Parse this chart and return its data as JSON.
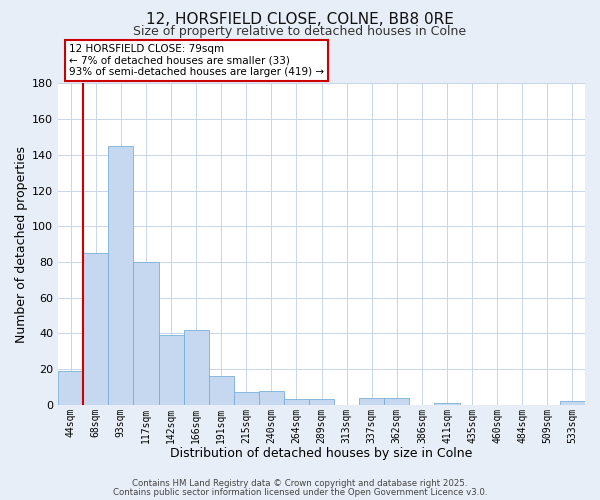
{
  "title": "12, HORSFIELD CLOSE, COLNE, BB8 0RE",
  "subtitle": "Size of property relative to detached houses in Colne",
  "xlabel": "Distribution of detached houses by size in Colne",
  "ylabel": "Number of detached properties",
  "bar_labels": [
    "44sqm",
    "68sqm",
    "93sqm",
    "117sqm",
    "142sqm",
    "166sqm",
    "191sqm",
    "215sqm",
    "240sqm",
    "264sqm",
    "289sqm",
    "313sqm",
    "337sqm",
    "362sqm",
    "386sqm",
    "411sqm",
    "435sqm",
    "460sqm",
    "484sqm",
    "509sqm",
    "533sqm"
  ],
  "bar_values": [
    19,
    85,
    145,
    80,
    39,
    42,
    16,
    7,
    8,
    3,
    3,
    0,
    4,
    4,
    0,
    1,
    0,
    0,
    0,
    0,
    2
  ],
  "bar_color": "#c5d8f0",
  "bar_edge_color": "#7ab0d8",
  "vline_color": "#cc0000",
  "vline_x_bar_index": 1,
  "ylim": [
    0,
    180
  ],
  "yticks": [
    0,
    20,
    40,
    60,
    80,
    100,
    120,
    140,
    160,
    180
  ],
  "annotation_text": "12 HORSFIELD CLOSE: 79sqm\n← 7% of detached houses are smaller (33)\n93% of semi-detached houses are larger (419) →",
  "annotation_box_color": "#ffffff",
  "annotation_box_edge": "#cc0000",
  "footer1": "Contains HM Land Registry data © Crown copyright and database right 2025.",
  "footer2": "Contains public sector information licensed under the Open Government Licence v3.0.",
  "bg_color": "#e8eef8",
  "plot_bg_color": "#ffffff",
  "grid_color": "#c8d4e8"
}
